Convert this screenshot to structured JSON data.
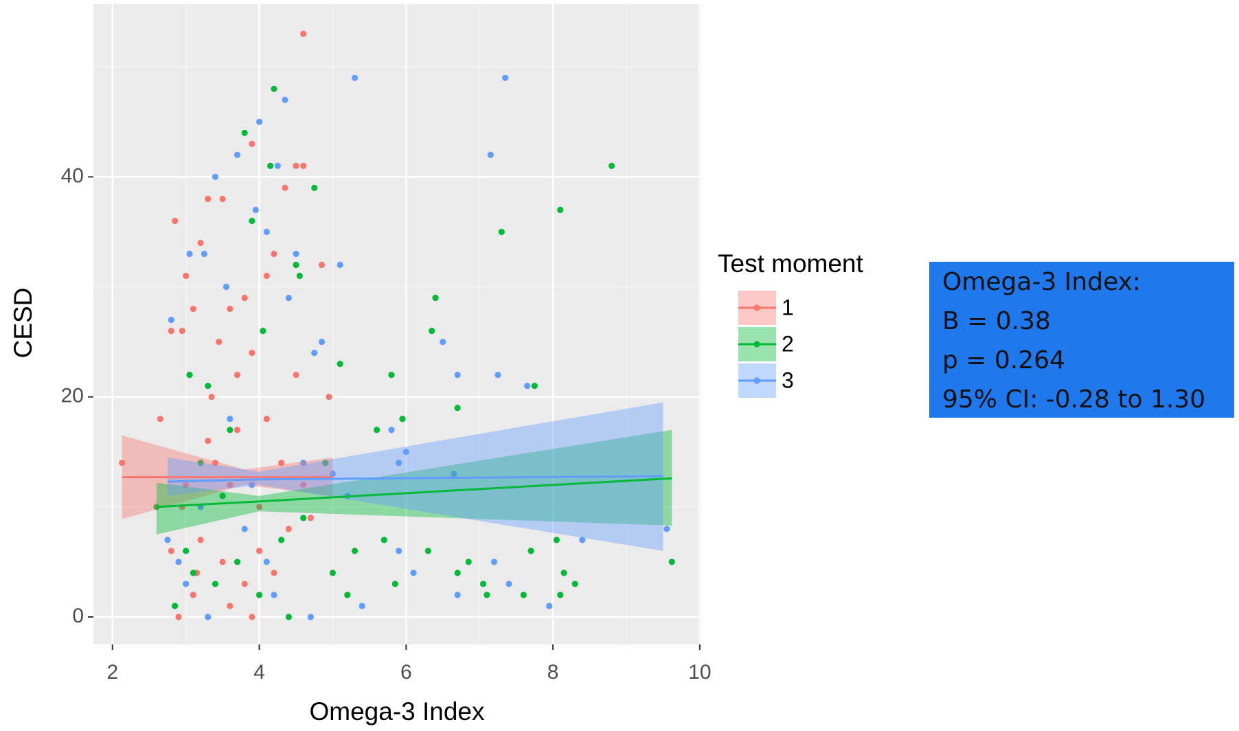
{
  "chart_data": {
    "type": "scatter",
    "xlabel": "Omega-3 Index",
    "ylabel": "CESD",
    "xlim": [
      1.74,
      10.02
    ],
    "ylim": [
      -2.5,
      55.7
    ],
    "xticks": [
      2,
      4,
      6,
      8,
      10
    ],
    "yticks": [
      0,
      20,
      40
    ],
    "xminor": [
      3,
      5,
      7,
      9
    ],
    "yminor": [
      10,
      30,
      50
    ],
    "grid": true,
    "legend_title": "Test moment",
    "series": [
      {
        "name": "1",
        "color": "#F8766D",
        "x": [
          2.13,
          2.65,
          2.8,
          2.85,
          2.9,
          2.95,
          3.0,
          3.05,
          3.1,
          3.2,
          3.3,
          3.45,
          3.5,
          3.6,
          3.7,
          3.8,
          3.9,
          4.1,
          4.2,
          4.35,
          4.5,
          4.6,
          4.6,
          4.85,
          4.95,
          4.5,
          3.3,
          3.6,
          4.0,
          3.2,
          3.5,
          3.8,
          3.1,
          4.2,
          4.4,
          3.9,
          2.8,
          3.0,
          3.4,
          3.7,
          4.1,
          4.3,
          4.7,
          2.95,
          3.6,
          3.15,
          4.0,
          3.35,
          3.9,
          4.6
        ],
        "y": [
          14,
          18,
          26,
          36,
          0,
          26,
          31,
          22,
          28,
          34,
          38,
          25,
          38,
          28,
          22,
          29,
          43,
          31,
          33,
          39,
          41,
          41,
          53,
          32,
          20,
          22,
          16,
          12,
          10,
          7,
          5,
          3,
          2,
          4,
          8,
          0,
          6,
          12,
          14,
          17,
          18,
          14,
          9,
          10,
          1,
          4,
          6,
          20,
          24,
          12
        ],
        "fit": {
          "x": [
            2.13,
            3.8,
            5.0
          ],
          "y": [
            12.7,
            12.7,
            12.7
          ],
          "lower": [
            8.9,
            12.0,
            11.0
          ],
          "upper": [
            16.5,
            13.4,
            14.5
          ]
        }
      },
      {
        "name": "2",
        "color": "#00BA38",
        "x": [
          2.6,
          2.85,
          3.05,
          3.1,
          3.2,
          3.3,
          3.5,
          3.6,
          3.8,
          3.9,
          4.05,
          4.15,
          4.2,
          4.5,
          4.55,
          4.75,
          4.9,
          5.1,
          5.2,
          5.3,
          5.6,
          5.8,
          5.95,
          5.7,
          5.85,
          6.35,
          6.4,
          6.7,
          6.3,
          6.7,
          6.85,
          7.05,
          7.1,
          7.3,
          7.6,
          7.7,
          7.75,
          8.05,
          8.1,
          8.15,
          8.3,
          8.1,
          8.8,
          9.62,
          4.4,
          3.7,
          4.3,
          3.4,
          4.6,
          3.0,
          4.0,
          5.0
        ],
        "y": [
          10,
          1,
          22,
          4,
          14,
          21,
          11,
          17,
          44,
          36,
          26,
          41,
          48,
          32,
          31,
          39,
          14,
          23,
          2,
          6,
          17,
          22,
          18,
          7,
          3,
          26,
          29,
          19,
          6,
          4,
          5,
          3,
          2,
          35,
          2,
          6,
          21,
          7,
          2,
          4,
          3,
          37,
          41,
          5,
          0,
          5,
          7,
          3,
          9,
          6,
          2,
          4
        ],
        "fit": {
          "x": [
            2.6,
            4.0,
            9.62
          ],
          "y": [
            10.0,
            10.5,
            12.6
          ],
          "lower": [
            7.5,
            9.6,
            8.3
          ],
          "upper": [
            12.2,
            11.0,
            17.0
          ]
        }
      },
      {
        "name": "3",
        "color": "#619CFF",
        "x": [
          2.75,
          2.8,
          3.05,
          3.25,
          3.4,
          3.55,
          3.7,
          3.95,
          4.0,
          4.1,
          4.25,
          4.35,
          4.5,
          4.75,
          4.85,
          5.1,
          5.3,
          5.8,
          5.9,
          6.0,
          6.5,
          6.7,
          6.65,
          6.7,
          7.15,
          7.25,
          7.35,
          7.65,
          7.4,
          7.2,
          7.95,
          8.4,
          9.55,
          5.4,
          5.9,
          6.1,
          5.2,
          4.4,
          3.6,
          3.2,
          3.8,
          4.2,
          4.7,
          3.3,
          3.0,
          4.6,
          3.9,
          4.1,
          2.9,
          5.0
        ],
        "y": [
          7,
          27,
          33,
          33,
          40,
          30,
          42,
          37,
          45,
          35,
          41,
          47,
          33,
          24,
          25,
          32,
          49,
          17,
          14,
          15,
          25,
          22,
          13,
          2,
          42,
          22,
          49,
          21,
          3,
          5,
          1,
          7,
          8,
          1,
          6,
          4,
          11,
          29,
          18,
          10,
          8,
          2,
          0,
          0,
          3,
          14,
          12,
          5,
          5,
          13
        ],
        "fit": {
          "x": [
            2.75,
            4.0,
            9.5
          ],
          "y": [
            12.3,
            12.5,
            12.8
          ],
          "lower": [
            11.0,
            12.0,
            6.0
          ],
          "upper": [
            14.5,
            13.2,
            19.5
          ]
        }
      }
    ],
    "annotation": [
      "Omega-3 Index:",
      "B = 0.38",
      "p = 0.264",
      "95% CI: -0.28 to 1.30"
    ]
  }
}
